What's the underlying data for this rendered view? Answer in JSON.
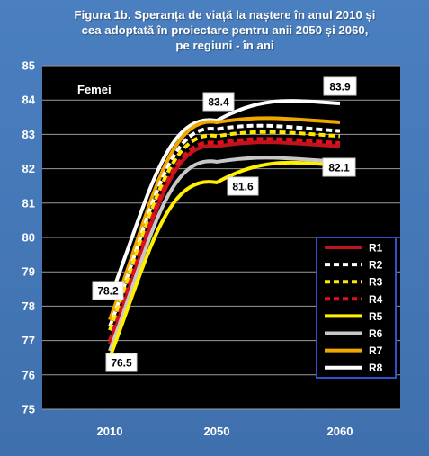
{
  "chart_data": {
    "type": "line",
    "title_lines": [
      "Figura  1b. Speranța de viață la naștere în anul 2010 și",
      "cea adoptată în proiectare pentru anii 2050 și 2060,",
      "pe regiuni - în ani"
    ],
    "panel_label": "Femei",
    "categories": [
      "2010",
      "2050",
      "2060"
    ],
    "ylim": [
      75,
      85
    ],
    "yticks": [
      75,
      76,
      77,
      78,
      79,
      80,
      81,
      82,
      83,
      84,
      85
    ],
    "grid": true,
    "legend_position": "bottom-right",
    "series": [
      {
        "name": "R1",
        "values": [
          76.9,
          82.65,
          82.65
        ],
        "color": "#c0141c",
        "style": "solid"
      },
      {
        "name": "R2",
        "values": [
          77.4,
          83.15,
          83.1
        ],
        "color": "#ffffff",
        "style": "dashed"
      },
      {
        "name": "R3",
        "values": [
          77.3,
          82.95,
          82.95
        ],
        "color": "#ffe800",
        "style": "dashed"
      },
      {
        "name": "R4",
        "values": [
          77.0,
          82.75,
          82.75
        ],
        "color": "#e01020",
        "style": "dashed"
      },
      {
        "name": "R5",
        "values": [
          76.5,
          81.6,
          82.1
        ],
        "color": "#ffef00",
        "style": "solid"
      },
      {
        "name": "R6",
        "values": [
          76.7,
          82.2,
          82.2
        ],
        "color": "#c8c8c8",
        "style": "solid"
      },
      {
        "name": "R7",
        "values": [
          77.6,
          83.35,
          83.35
        ],
        "color": "#f0a800",
        "style": "solid"
      },
      {
        "name": "R8",
        "values": [
          78.2,
          83.4,
          83.9
        ],
        "color": "#ffffff",
        "style": "solid"
      }
    ],
    "annotations": [
      "78.2",
      "76.5",
      "83.4",
      "81.6",
      "83.9",
      "82.1"
    ]
  }
}
